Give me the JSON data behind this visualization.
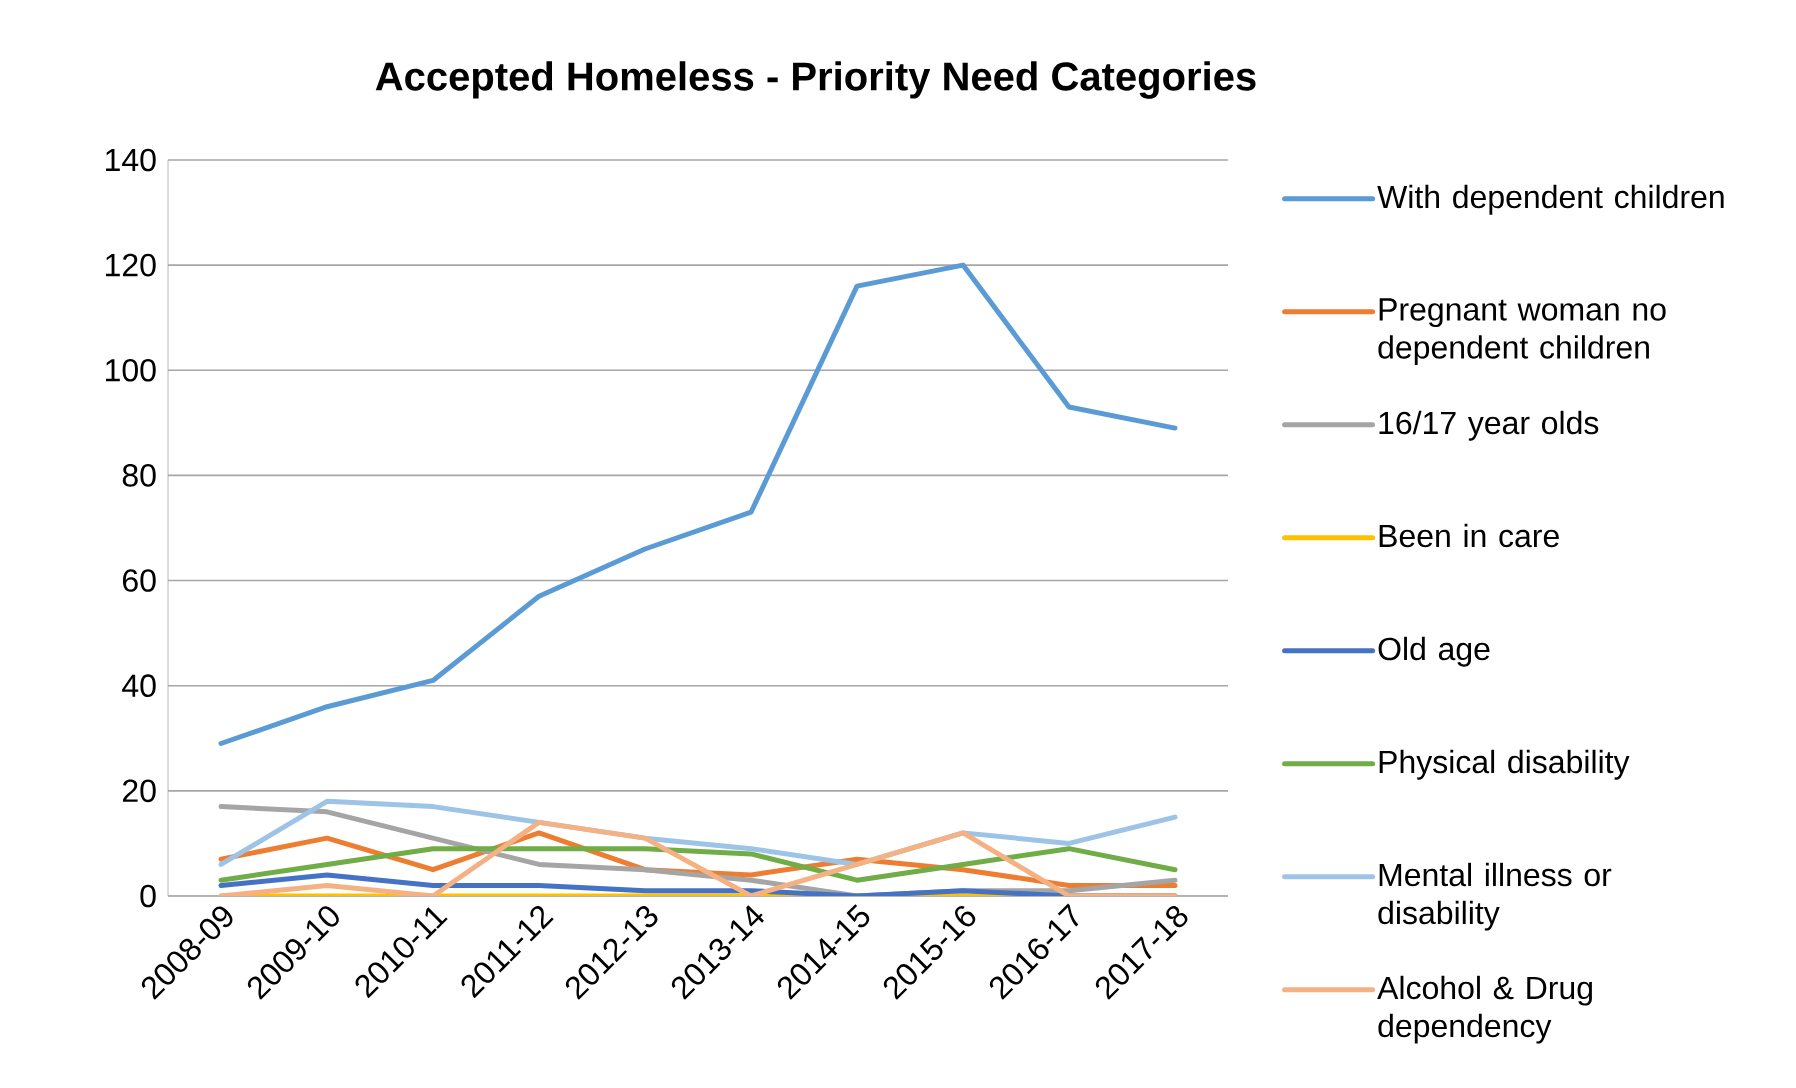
{
  "chart_data": {
    "type": "line",
    "title": "Accepted Homeless - Priority Need Categories",
    "categories": [
      "2008-09",
      "2009-10",
      "2010-11",
      "2011-12",
      "2012-13",
      "2013-14",
      "2014-15",
      "2015-16",
      "2016-17",
      "2017-18"
    ],
    "series": [
      {
        "name": "With dependent children",
        "color": "#5b9bd5",
        "values": [
          29,
          36,
          41,
          57,
          66,
          73,
          116,
          120,
          93,
          89
        ]
      },
      {
        "name": "Pregnant woman no dependent children",
        "color": "#ed7d31",
        "values": [
          7,
          11,
          5,
          12,
          5,
          4,
          7,
          5,
          2,
          2
        ]
      },
      {
        "name": "16/17 year olds",
        "color": "#a5a5a5",
        "values": [
          17,
          16,
          11,
          6,
          5,
          3,
          0,
          1,
          1,
          3
        ]
      },
      {
        "name": "Been in care",
        "color": "#ffc000",
        "values": [
          0,
          0,
          0,
          0,
          0,
          0,
          0,
          0,
          0,
          0
        ]
      },
      {
        "name": "Old age",
        "color": "#4472c4",
        "values": [
          2,
          4,
          2,
          2,
          1,
          1,
          0,
          1,
          0,
          0
        ]
      },
      {
        "name": "Physical disability",
        "color": "#70ad47",
        "values": [
          3,
          6,
          9,
          9,
          9,
          8,
          3,
          6,
          9,
          5
        ]
      },
      {
        "name": "Mental illness or disability",
        "color": "#9dc3e6",
        "values": [
          6,
          18,
          17,
          14,
          11,
          9,
          6,
          12,
          10,
          15
        ]
      },
      {
        "name": "Alcohol & Drug dependency",
        "color": "#f4b183",
        "values": [
          0,
          2,
          0,
          14,
          11,
          0,
          6,
          12,
          0,
          0
        ]
      }
    ],
    "ylim": [
      0,
      140
    ],
    "yticks": [
      0,
      20,
      40,
      60,
      80,
      100,
      120,
      140
    ],
    "grid": "y",
    "legend": "right",
    "marker": "none",
    "line_style": "solid"
  }
}
